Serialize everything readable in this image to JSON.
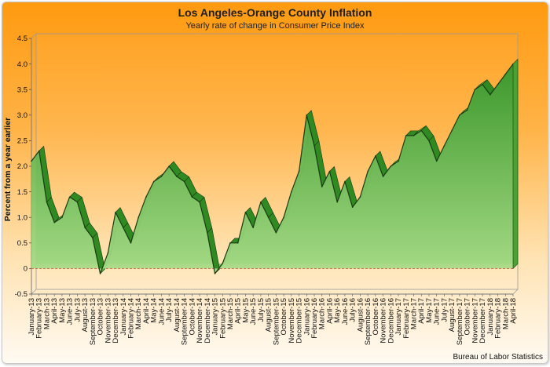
{
  "chart_data": {
    "type": "area",
    "title": "Los Angeles-Orange County Inflation",
    "subtitle": "Yearly rate of change in Consumer Price Index",
    "ylabel": "Percent from a year earlier",
    "xlabel": "",
    "source": "Bureau of Labor Statistics",
    "ylim": [
      -0.5,
      4.5
    ],
    "y_ticks": [
      "-0.5",
      "0",
      "0.5",
      "1.0",
      "1.5",
      "2.0",
      "2.5",
      "3.0",
      "3.5",
      "4.0",
      "4.5"
    ],
    "grid": false,
    "legend": "none",
    "colors": {
      "area_top": "#3d9a2c",
      "area_bottom": "#a8dc88",
      "zero_line": "#d02020",
      "outline": "#1a3a12"
    },
    "categories": [
      "January-13",
      "February-13",
      "March-13",
      "April-13",
      "May-13",
      "June-13",
      "July-13",
      "August-13",
      "September-13",
      "October-13",
      "November-13",
      "December-13",
      "January-14",
      "February-14",
      "March-14",
      "April-14",
      "May-14",
      "June-14",
      "July-14",
      "August-14",
      "September-14",
      "October-14",
      "November-14",
      "December-14",
      "January-15",
      "February-15",
      "March-15",
      "April-15",
      "May-15",
      "June-15",
      "July-15",
      "August-15",
      "September-15",
      "October-15",
      "November-15",
      "December-15",
      "January-16",
      "February-16",
      "March-16",
      "April-16",
      "May-16",
      "June-16",
      "July-16",
      "August-16",
      "September-16",
      "October-16",
      "November-16",
      "December-16",
      "January-17",
      "February-17",
      "March-17",
      "April-17",
      "May-17",
      "June-17",
      "July-17",
      "August-17",
      "September-17",
      "October-17",
      "November-17",
      "December-17",
      "January-18",
      "February-18",
      "March-18",
      "April-18"
    ],
    "values": [
      2.1,
      2.3,
      1.3,
      0.9,
      1.0,
      1.4,
      1.3,
      0.8,
      0.6,
      -0.1,
      0.3,
      1.1,
      0.8,
      0.5,
      1.0,
      1.4,
      1.7,
      1.8,
      2.0,
      1.8,
      1.7,
      1.4,
      1.3,
      0.7,
      -0.1,
      0.1,
      0.5,
      0.5,
      1.1,
      0.8,
      1.3,
      1.0,
      0.7,
      1.0,
      1.5,
      1.9,
      3.0,
      2.4,
      1.6,
      1.9,
      1.3,
      1.7,
      1.2,
      1.4,
      1.9,
      2.2,
      1.8,
      2.0,
      2.1,
      2.6,
      2.6,
      2.7,
      2.5,
      2.1,
      2.4,
      2.7,
      3.0,
      3.1,
      3.5,
      3.6,
      3.4,
      3.6,
      3.8,
      4.0
    ]
  }
}
